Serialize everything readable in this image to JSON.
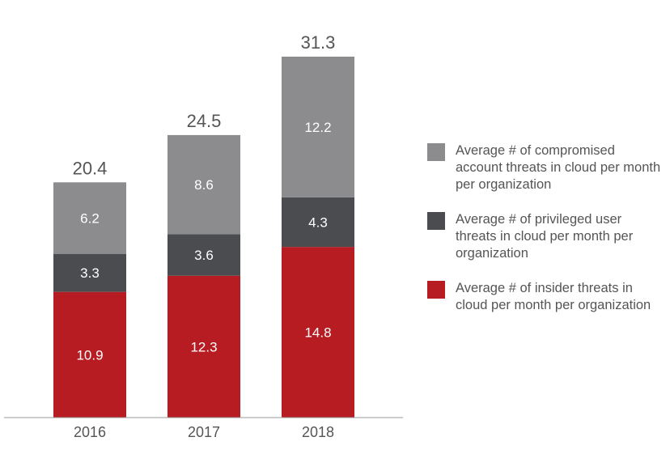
{
  "chart_data": {
    "type": "bar",
    "stacked": true,
    "categories": [
      "2016",
      "2017",
      "2018"
    ],
    "series": [
      {
        "name": "Average # of insider threats in cloud per month per organization",
        "color": "#b71c22",
        "values": [
          10.9,
          12.3,
          14.8
        ]
      },
      {
        "name": "Average # of privileged user threats in cloud per month per organization",
        "color": "#4a4c50",
        "values": [
          3.3,
          3.6,
          4.3
        ]
      },
      {
        "name": "Average # of compromised account threats in cloud per month per organization",
        "color": "#8c8c8e",
        "values": [
          6.2,
          8.6,
          12.2
        ]
      }
    ],
    "totals": [
      "20.4",
      "24.5",
      "31.3"
    ],
    "ylim": [
      0,
      31.3
    ],
    "grid": false,
    "legend_position": "right",
    "title": "",
    "xlabel": "",
    "ylabel": ""
  }
}
